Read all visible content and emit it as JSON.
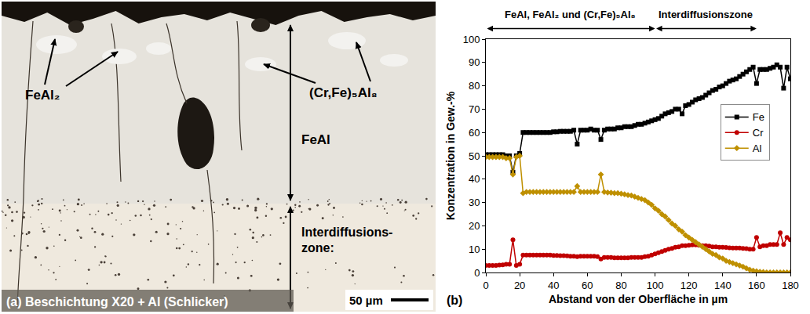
{
  "panel_a": {
    "caption": "(a) Beschichtung X20 + Al (Schlicker)",
    "scale_bar": "50 µm",
    "labels": [
      "FeAl₂",
      "(Cr,Fe)₅Al₈",
      "FeAl"
    ],
    "zone_label": [
      "Interdiffusions-",
      "zone:"
    ]
  },
  "chart_data": {
    "type": "line",
    "panel_label": "(b)",
    "x_label": "Abstand von der Oberfläche in µm",
    "y_label": "Konzentration in Gew.-%",
    "xlim": [
      0,
      180
    ],
    "xticks": [
      0,
      20,
      40,
      60,
      80,
      100,
      120,
      140,
      160,
      180
    ],
    "ylim": [
      0,
      100
    ],
    "yticks": [
      0,
      10,
      20,
      30,
      40,
      50,
      60,
      70,
      80,
      90,
      100
    ],
    "grid": false,
    "legend": "right",
    "annotations": [
      {
        "text": "FeAl, FeAl₂ und (Cr,Fe)₅Al₈",
        "x_range": [
          0,
          100
        ]
      },
      {
        "text": "Interdiffusionszone",
        "x_range": [
          100,
          160
        ]
      }
    ],
    "x": [
      0,
      2,
      4,
      6,
      8,
      10,
      12,
      14,
      16,
      18,
      20,
      22,
      24,
      26,
      28,
      30,
      32,
      34,
      36,
      38,
      40,
      42,
      44,
      46,
      48,
      50,
      52,
      54,
      56,
      58,
      60,
      62,
      64,
      66,
      68,
      70,
      72,
      74,
      76,
      78,
      80,
      82,
      84,
      86,
      88,
      90,
      92,
      94,
      96,
      98,
      100,
      102,
      104,
      106,
      108,
      110,
      112,
      114,
      116,
      118,
      120,
      122,
      124,
      126,
      128,
      130,
      132,
      134,
      136,
      138,
      140,
      142,
      144,
      146,
      148,
      150,
      152,
      154,
      156,
      158,
      160,
      162,
      164,
      166,
      168,
      170,
      172,
      174,
      176,
      178,
      180
    ],
    "series": [
      {
        "name": "Fe",
        "color": "#000000",
        "marker": "square",
        "values": [
          50.5,
          50.5,
          50.5,
          50.5,
          50.5,
          50.5,
          50,
          50,
          43,
          50,
          51,
          60,
          60,
          60,
          60,
          60,
          60,
          60,
          60,
          60,
          60.3,
          60.3,
          60.5,
          60.5,
          60.5,
          60.5,
          61,
          55,
          61,
          61,
          61,
          61.5,
          61,
          61,
          57,
          61,
          61.5,
          61.5,
          61.5,
          62,
          62,
          62.5,
          62.5,
          62.5,
          63,
          63.5,
          63.5,
          64,
          64.5,
          65,
          65.5,
          66,
          67,
          68,
          68.5,
          69,
          70,
          70,
          68,
          71.5,
          72,
          73,
          74,
          74.5,
          75,
          76,
          77,
          78,
          78.5,
          79.5,
          80,
          81,
          82,
          82.5,
          83,
          84,
          85,
          86,
          87,
          88,
          81,
          87,
          87,
          87,
          87.5,
          88,
          89,
          88,
          79,
          88,
          83
        ]
      },
      {
        "name": "Cr",
        "color": "#c00000",
        "marker": "circle",
        "values": [
          3,
          3,
          3,
          3,
          3.2,
          3.3,
          3.5,
          3.5,
          14,
          3,
          3.5,
          7.5,
          7.5,
          7.5,
          7.5,
          7.5,
          7.5,
          7.5,
          7.5,
          7.5,
          7.3,
          7.3,
          7.2,
          7.2,
          7.1,
          7,
          7,
          6.8,
          7,
          7,
          7,
          7,
          7,
          6.8,
          5.8,
          6.5,
          6.5,
          6.5,
          6.3,
          6.3,
          6.3,
          6.3,
          6.3,
          6.5,
          6.5,
          6.5,
          6.5,
          6.8,
          7,
          7.5,
          8,
          8.5,
          9,
          9.5,
          10,
          10.3,
          10.8,
          11,
          11.5,
          11.5,
          11.7,
          11.8,
          11.8,
          11.7,
          11.5,
          11.5,
          11.3,
          11,
          11,
          10.8,
          10.8,
          10.7,
          10.6,
          10.5,
          10.5,
          10.5,
          10.3,
          10.2,
          10,
          10,
          15,
          11,
          11.5,
          11.5,
          12,
          12,
          12,
          17,
          12,
          15,
          14
        ]
      },
      {
        "name": "Al",
        "color": "#bf9000",
        "marker": "diamond",
        "values": [
          49.5,
          49.5,
          49.5,
          49.5,
          49.5,
          49.5,
          49,
          49,
          42,
          49.5,
          50,
          34,
          34.5,
          34.5,
          34.5,
          34.5,
          34.5,
          34.5,
          34.5,
          34.5,
          34.5,
          34.5,
          34.5,
          34.5,
          34.5,
          34.5,
          34.5,
          37,
          34.5,
          34.5,
          34.5,
          34.5,
          34.5,
          34.5,
          42,
          34.5,
          34.3,
          34.2,
          34,
          34,
          33.8,
          33.5,
          33.2,
          33,
          32.5,
          32,
          31.5,
          31,
          30,
          29,
          27.5,
          26.5,
          25,
          24,
          22.5,
          21,
          20,
          18.5,
          17.5,
          16,
          15,
          14,
          13,
          12,
          11,
          10,
          9,
          8,
          7.5,
          6.5,
          6,
          5,
          4.5,
          4,
          3.5,
          3,
          2.5,
          1.8,
          1.2,
          0.8,
          0.5,
          0.3,
          0.2,
          0,
          0,
          0,
          0,
          0,
          0,
          0,
          0
        ]
      }
    ]
  }
}
